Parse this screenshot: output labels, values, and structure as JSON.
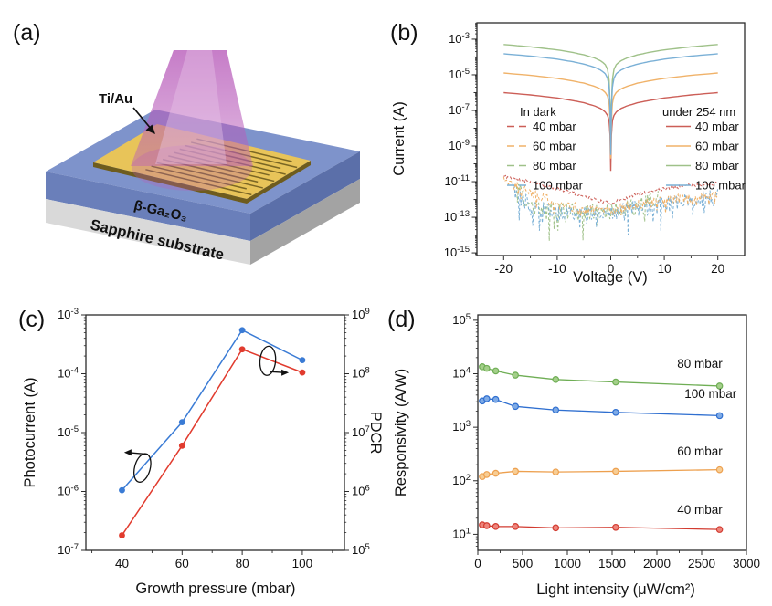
{
  "figure": {
    "background": "#ffffff",
    "axis_color": "#2b2b2b",
    "panel_labels": {
      "a": "(a)",
      "b": "(b)",
      "c": "(c)",
      "d": "(d)"
    }
  },
  "panel_a": {
    "annotations": {
      "electrode": "Ti/Au",
      "film": "β-Ga₂O₃",
      "substrate": "Sapphire substrate"
    },
    "colors": {
      "film_top": "#7e93cb",
      "film_front": "#6a7fba",
      "film_side": "#5b6fa9",
      "substrate_front": "#d9d9d9",
      "substrate_side": "#a3a3a3",
      "gold": "#e8c459",
      "gold_dark": "#6e5c1e",
      "beam": "#b85cba",
      "beam_core": "#e7c3e8",
      "arrow": "#111111"
    }
  },
  "chart_data": [
    {
      "id": "b",
      "type": "line",
      "xlabel": "Voltage (V)",
      "ylabel": "Current (A)",
      "xlim": [
        -25,
        25
      ],
      "x_major_ticks": [
        -20,
        -10,
        0,
        10,
        20
      ],
      "x_minor_ticks": [
        -15,
        -5,
        5,
        15
      ],
      "ylog": true,
      "ylim_exp": [
        -15.15,
        -2.08
      ],
      "y_labeled_exps": [
        -3,
        -5,
        -7,
        -9,
        -11,
        -13,
        -15
      ],
      "legend": {
        "dark_title": "In dark",
        "light_title": "under 254 nm",
        "entries": [
          "40 mbar",
          "60 mbar",
          "80 mbar",
          "100 mbar"
        ],
        "colors": [
          "#cc5e57",
          "#f0b269",
          "#9fc189",
          "#7ab0d6"
        ]
      },
      "series_light": [
        {
          "name": "40 mbar",
          "color": "#cc5e57",
          "v_abs": [
            0,
            0.12,
            0.3,
            0.6,
            1,
            1.5,
            2,
            3,
            5,
            7,
            10,
            15,
            20
          ],
          "logI": [
            -10.4,
            -8.4,
            -7.6,
            -7.28,
            -7.1,
            -6.97,
            -6.88,
            -6.75,
            -6.57,
            -6.45,
            -6.3,
            -6.13,
            -6.0
          ]
        },
        {
          "name": "60 mbar",
          "color": "#f0b269",
          "v_abs": [
            0,
            0.12,
            0.3,
            0.6,
            1,
            1.5,
            2,
            3,
            5,
            7,
            10,
            15,
            20
          ],
          "logI": [
            -9.7,
            -7.6,
            -6.6,
            -6.2,
            -6.0,
            -5.87,
            -5.78,
            -5.65,
            -5.47,
            -5.35,
            -5.2,
            -5.03,
            -4.9
          ]
        },
        {
          "name": "80 mbar",
          "color": "#9fc189",
          "v_abs": [
            0,
            0.12,
            0.3,
            0.6,
            1,
            1.5,
            2,
            3,
            5,
            7,
            10,
            15,
            20
          ],
          "logI": [
            -9.4,
            -6.7,
            -5.3,
            -4.7,
            -4.44,
            -4.3,
            -4.2,
            -4.06,
            -3.88,
            -3.75,
            -3.6,
            -3.43,
            -3.3
          ]
        },
        {
          "name": "100 mbar",
          "color": "#7ab0d6",
          "v_abs": [
            0,
            0.12,
            0.3,
            0.6,
            1,
            1.5,
            2,
            3,
            5,
            7,
            10,
            15,
            20
          ],
          "logI": [
            -9.5,
            -7.0,
            -5.7,
            -5.2,
            -4.95,
            -4.82,
            -4.72,
            -4.58,
            -4.4,
            -4.27,
            -4.12,
            -3.95,
            -3.82
          ]
        }
      ],
      "series_dark": [
        {
          "name": "80 mbar dark",
          "color": "#9fc189",
          "v_range": [
            -17.6,
            9
          ],
          "anchors_v": [
            -17.6,
            -15,
            -10,
            -5,
            0,
            5,
            9
          ],
          "anchors_logI": [
            -11.3,
            -12.5,
            -12.7,
            -12.75,
            -12.7,
            -12.4,
            -12.0
          ],
          "noise": 0.5,
          "spike": 0.6,
          "seed": 33
        },
        {
          "name": "100 mbar dark",
          "color": "#7ab0d6",
          "v_range": [
            -18,
            20
          ],
          "anchors_v": [
            -18,
            -15,
            -10,
            -5,
            0,
            5,
            10,
            15,
            20
          ],
          "anchors_logI": [
            -11.5,
            -12.45,
            -12.7,
            -12.75,
            -12.75,
            -12.5,
            -12.3,
            -12.05,
            -11.85
          ],
          "noise": 0.45,
          "spike": 0.5,
          "seed": 44
        },
        {
          "name": "60 mbar dark",
          "color": "#f0b269",
          "v_range": [
            -20,
            20
          ],
          "anchors_v": [
            -20,
            -15,
            -10,
            -5,
            -2,
            0,
            2,
            5,
            10,
            15,
            20
          ],
          "anchors_logI": [
            -10.8,
            -11.6,
            -12.25,
            -12.55,
            -12.65,
            -12.6,
            -12.45,
            -12.3,
            -12.1,
            -11.9,
            -11.7
          ],
          "noise": 0.27,
          "spike": 0.3,
          "seed": 22
        },
        {
          "name": "40 mbar dark",
          "color": "#cc5e57",
          "v_range": [
            -20,
            20
          ],
          "anchors_v": [
            -20,
            -15,
            -10,
            -5,
            -2,
            0,
            2,
            5,
            10,
            15,
            20
          ],
          "anchors_logI": [
            -10.7,
            -11.0,
            -11.4,
            -11.8,
            -12.1,
            -12.2,
            -12.0,
            -11.7,
            -11.4,
            -11.2,
            -11.1
          ],
          "noise": 0.09,
          "spike": 0,
          "seed": 11
        }
      ]
    },
    {
      "id": "c",
      "type": "line",
      "xlabel": "Growth pressure (mbar)",
      "ylabel_left": "Photocurrent (A)",
      "ylabel_right": "PDCR",
      "xlim": [
        28,
        114
      ],
      "x_ticks": [
        40,
        60,
        80,
        100
      ],
      "x_minor_ticks": [
        30,
        50,
        70,
        90,
        110
      ],
      "ylog": true,
      "ylim_left_exp": [
        -7,
        -3
      ],
      "ylim_right_exp": [
        5,
        9
      ],
      "categories": [
        40,
        60,
        80,
        100
      ],
      "series": [
        {
          "name": "Photocurrent",
          "axis": "left",
          "color": "#3a7bd5",
          "values": [
            1.05e-06,
            1.5e-05,
            0.00055,
            0.00017
          ]
        },
        {
          "name": "PDCR",
          "axis": "right",
          "color": "#e13b2e",
          "values": [
            180000.0,
            6000000.0,
            260000000.0,
            105000000.0
          ]
        }
      ],
      "annotations": [
        {
          "type": "ellipse-arrow",
          "x": 46.8,
          "y_exp_left": -5.6,
          "dir": "left",
          "rotate": 15
        },
        {
          "type": "ellipse-arrow",
          "x": 88.5,
          "y_exp_left": -3.78,
          "dir": "right",
          "rotate": 5
        }
      ]
    },
    {
      "id": "d",
      "type": "scatter-line",
      "xlabel": "Light intensity (μW/cm²)",
      "ylabel": "Responsivity (A/W)",
      "xlim": [
        0,
        3000
      ],
      "x_major_ticks": [
        0,
        500,
        1000,
        1500,
        2000,
        2500,
        3000
      ],
      "x_minor_step": 250,
      "ylog": true,
      "ylim_exp": [
        0.7,
        5.1
      ],
      "y_labeled_exps": [
        1,
        2,
        3,
        4,
        5
      ],
      "x": [
        50,
        100,
        200,
        420,
        870,
        1540,
        2700
      ],
      "series": [
        {
          "name": "80 mbar",
          "color": "#6fae55",
          "fill": "#a4cf8a",
          "values": [
            13500,
            12600,
            11300,
            9400,
            7800,
            7000,
            5900
          ],
          "label_pos": [
            2480,
            13000
          ]
        },
        {
          "name": "100 mbar",
          "color": "#2f6fd0",
          "fill": "#7fabe6",
          "values": [
            3100,
            3400,
            3300,
            2450,
            2100,
            1900,
            1650
          ],
          "label_pos": [
            2600,
            3500
          ]
        },
        {
          "name": "60 mbar",
          "color": "#eda04f",
          "fill": "#f7cd94",
          "values": [
            120,
            131,
            138,
            150,
            146,
            150,
            161
          ],
          "label_pos": [
            2480,
            300
          ]
        },
        {
          "name": "40 mbar",
          "color": "#d23b30",
          "fill": "#ee857c",
          "values": [
            15,
            14.5,
            14,
            14,
            13.2,
            13.5,
            12.3
          ],
          "label_pos": [
            2480,
            24
          ]
        }
      ]
    }
  ]
}
